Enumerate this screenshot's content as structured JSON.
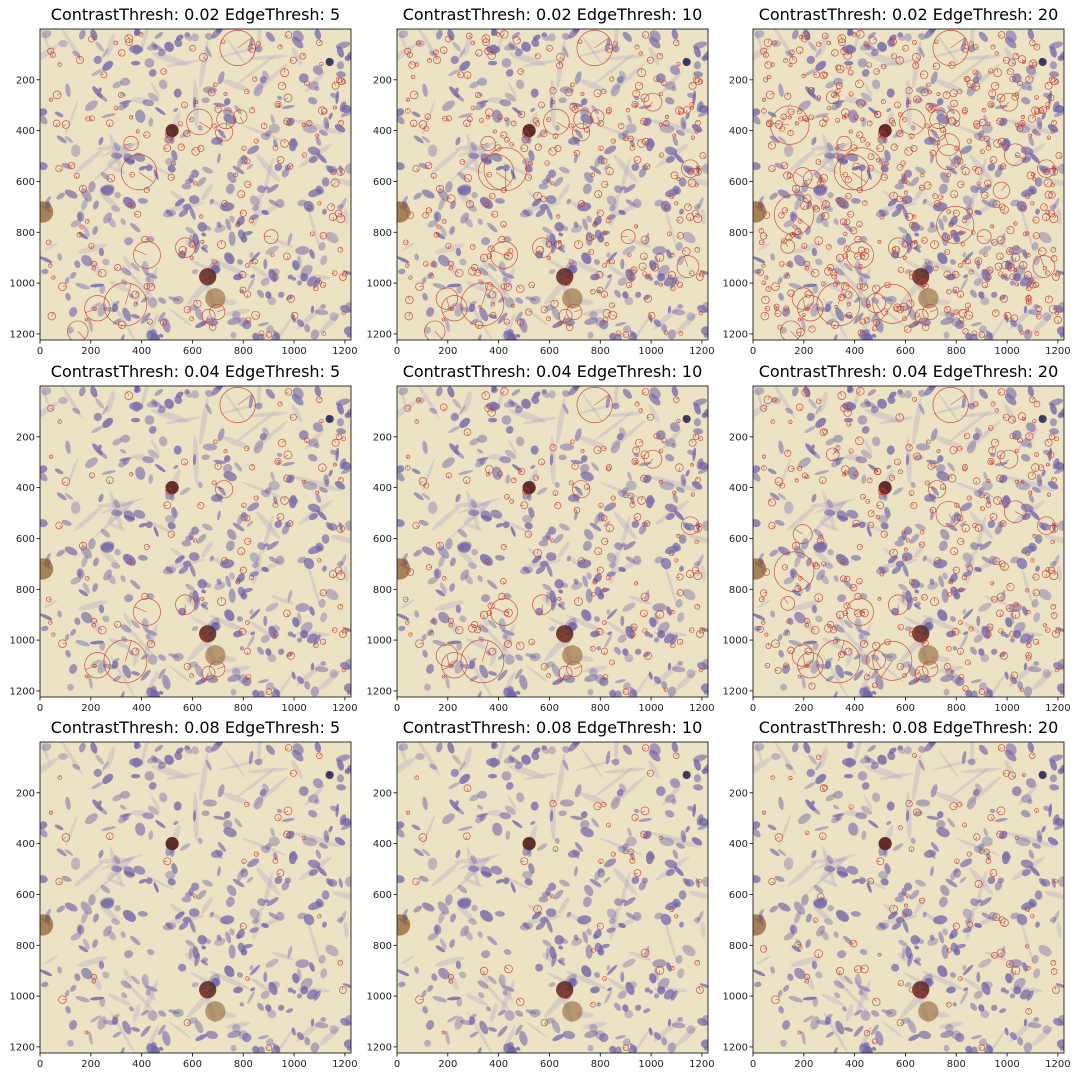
{
  "figure": {
    "panels": [
      {
        "title": "ContrastThresh: 0.02  EdgeThresh: 5",
        "contrast": 0.02,
        "edge": 5
      },
      {
        "title": "ContrastThresh: 0.02  EdgeThresh: 10",
        "contrast": 0.02,
        "edge": 10
      },
      {
        "title": "ContrastThresh: 0.02  EdgeThresh: 20",
        "contrast": 0.02,
        "edge": 20
      },
      {
        "title": "ContrastThresh: 0.04  EdgeThresh: 5",
        "contrast": 0.04,
        "edge": 5
      },
      {
        "title": "ContrastThresh: 0.04  EdgeThresh: 10",
        "contrast": 0.04,
        "edge": 10
      },
      {
        "title": "ContrastThresh: 0.04  EdgeThresh: 20",
        "contrast": 0.04,
        "edge": 20
      },
      {
        "title": "ContrastThresh: 0.08  EdgeThresh: 5",
        "contrast": 0.08,
        "edge": 5
      },
      {
        "title": "ContrastThresh: 0.08  EdgeThresh: 10",
        "contrast": 0.08,
        "edge": 10
      },
      {
        "title": "ContrastThresh: 0.08  EdgeThresh: 20",
        "contrast": 0.08,
        "edge": 20
      }
    ],
    "x_ticks": [
      0,
      200,
      400,
      600,
      800,
      1000,
      1200
    ],
    "y_ticks": [
      200,
      400,
      600,
      800,
      1000,
      1200
    ],
    "image_extent": [
      0,
      1224
    ],
    "colors": {
      "tissue": "#ece2c4",
      "nucleus": "#6e63a8",
      "dark_cell": "#5a2420",
      "brown_stain": "#8a5a2a",
      "keypoint_circle": "#c0392b"
    }
  }
}
